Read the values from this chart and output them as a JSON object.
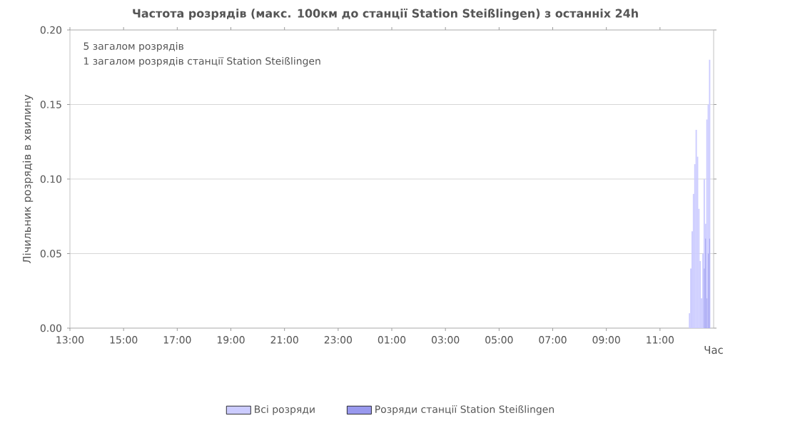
{
  "chart_data": {
    "type": "bar",
    "title": "Частота розрядів (макс. 100км до станції Station Steißlingen) з останніх 24h",
    "xlabel": "Час",
    "ylabel": "Лічильник розрядів в хвилину",
    "annotations": [
      "5 загалом розрядів",
      "1 загалом розрядів станції Station Steißlingen"
    ],
    "x": [
      "2000-01-02T12:06",
      "2000-01-02T12:09",
      "2000-01-02T12:12",
      "2000-01-02T12:15",
      "2000-01-02T12:18",
      "2000-01-02T12:21",
      "2000-01-02T12:24",
      "2000-01-02T12:27",
      "2000-01-02T12:30",
      "2000-01-02T12:33",
      "2000-01-02T12:36",
      "2000-01-02T12:39",
      "2000-01-02T12:42",
      "2000-01-02T12:45",
      "2000-01-02T12:48",
      "2000-01-02T12:51"
    ],
    "series": [
      {
        "name": "Всі розряди",
        "color": "#ccccff",
        "values": [
          0.01,
          0.04,
          0.065,
          0.09,
          0.11,
          0.133,
          0.115,
          0.08,
          0.045,
          0.02,
          0.05,
          0.1,
          0.07,
          0.14,
          0.15,
          0.18
        ]
      },
      {
        "name": "Розряди станції Station Steißlingen",
        "color": "#9999ee",
        "values": [
          null,
          null,
          null,
          null,
          null,
          null,
          null,
          null,
          null,
          null,
          null,
          0.04,
          0.06,
          0.02,
          0.05,
          0.06
        ]
      }
    ],
    "xlim": [
      "2000-01-01T13:00",
      "2000-01-02T13:00"
    ],
    "xticks": [
      {
        "value": "2000-01-01T13:00",
        "label": "13:00"
      },
      {
        "value": "2000-01-01T15:00",
        "label": "15:00"
      },
      {
        "value": "2000-01-01T17:00",
        "label": "17:00"
      },
      {
        "value": "2000-01-01T19:00",
        "label": "19:00"
      },
      {
        "value": "2000-01-01T21:00",
        "label": "21:00"
      },
      {
        "value": "2000-01-01T23:00",
        "label": "23:00"
      },
      {
        "value": "2000-01-02T01:00",
        "label": "01:00"
      },
      {
        "value": "2000-01-02T03:00",
        "label": "03:00"
      },
      {
        "value": "2000-01-02T05:00",
        "label": "05:00"
      },
      {
        "value": "2000-01-02T07:00",
        "label": "07:00"
      },
      {
        "value": "2000-01-02T09:00",
        "label": "09:00"
      },
      {
        "value": "2000-01-02T11:00",
        "label": "11:00"
      }
    ],
    "ylim": [
      0,
      0.2
    ],
    "yticks": [
      {
        "value": 0,
        "label": "0.00"
      },
      {
        "value": 0.05,
        "label": "0.05"
      },
      {
        "value": 0.1,
        "label": "0.10"
      },
      {
        "value": 0.15,
        "label": "0.15"
      },
      {
        "value": 0.2,
        "label": "0.20"
      }
    ],
    "grid": "y",
    "legend": "bottom"
  }
}
